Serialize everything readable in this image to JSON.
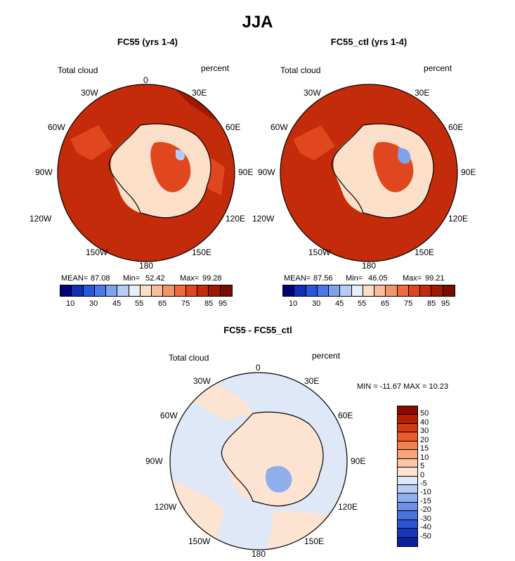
{
  "chart_data": [
    {
      "type": "heatmap",
      "projection": "south-polar-stereographic",
      "figure_title": "JJA",
      "title": "FC55 (yrs 1-4)",
      "variable": "Total cloud",
      "units": "percent",
      "stats": {
        "mean_label": "MEAN=",
        "mean": "87.08",
        "min_label": "Min=",
        "min": "52.42",
        "max_label": "Max=",
        "max": "99.28"
      },
      "lon_labels": [
        "0",
        "30E",
        "60E",
        "90E",
        "120E",
        "150E",
        "180",
        "150W",
        "120W",
        "90W",
        "60W",
        "30W"
      ],
      "colorbar": {
        "ticks": [
          "10",
          "30",
          "45",
          "55",
          "65",
          "75",
          "85",
          "95"
        ],
        "colors": [
          "#00007a",
          "#0f2fb5",
          "#2a55dd",
          "#4a7ae8",
          "#7ea3ee",
          "#b7ccf4",
          "#e8eef8",
          "#fbdfc9",
          "#f8bc98",
          "#f5936a",
          "#ef6a3e",
          "#e0471e",
          "#c42b0b",
          "#9e1802",
          "#7a0d00"
        ]
      }
    },
    {
      "type": "heatmap",
      "projection": "south-polar-stereographic",
      "title": "FC55_ctl (yrs 1-4)",
      "variable": "Total cloud",
      "units": "percent",
      "stats": {
        "mean_label": "MEAN=",
        "mean": "87.56",
        "min_label": "Min=",
        "min": "46.05",
        "max_label": "Max=",
        "max": "99.21"
      },
      "lon_labels": [
        "30E",
        "60E",
        "90E",
        "120E",
        "150E",
        "180",
        "150W",
        "120W",
        "90W",
        "60W",
        "30W"
      ],
      "colorbar": {
        "ticks": [
          "10",
          "30",
          "45",
          "55",
          "65",
          "75",
          "85",
          "95"
        ],
        "colors": [
          "#00007a",
          "#0f2fb5",
          "#2a55dd",
          "#4a7ae8",
          "#7ea3ee",
          "#b7ccf4",
          "#e8eef8",
          "#fbdfc9",
          "#f8bc98",
          "#f5936a",
          "#ef6a3e",
          "#e0471e",
          "#c42b0b",
          "#9e1802",
          "#7a0d00"
        ]
      }
    },
    {
      "type": "heatmap",
      "projection": "south-polar-stereographic",
      "title": "FC55 - FC55_ctl",
      "variable": "Total cloud",
      "units": "percent",
      "stats": {
        "text": "MIN = -11.67 MAX =   10.23"
      },
      "lon_labels": [
        "0",
        "30E",
        "60E",
        "90E",
        "120E",
        "150E",
        "180",
        "150W",
        "120W",
        "90W",
        "60W",
        "30W"
      ],
      "colorbar": {
        "orientation": "vertical",
        "ticks": [
          "50",
          "40",
          "30",
          "20",
          "15",
          "10",
          "5",
          "0",
          "-5",
          "-10",
          "-15",
          "-20",
          "-30",
          "-40",
          "-50"
        ],
        "colors": [
          "#8a0a00",
          "#b31f05",
          "#d63a12",
          "#ee5a2c",
          "#f5804f",
          "#f8a47a",
          "#fbc6a6",
          "#fde3d2",
          "#dfe8f6",
          "#b8cdf1",
          "#8faeec",
          "#6b90e6",
          "#4a72df",
          "#2d52d2",
          "#1636bc",
          "#0a1f9a"
        ]
      }
    }
  ]
}
